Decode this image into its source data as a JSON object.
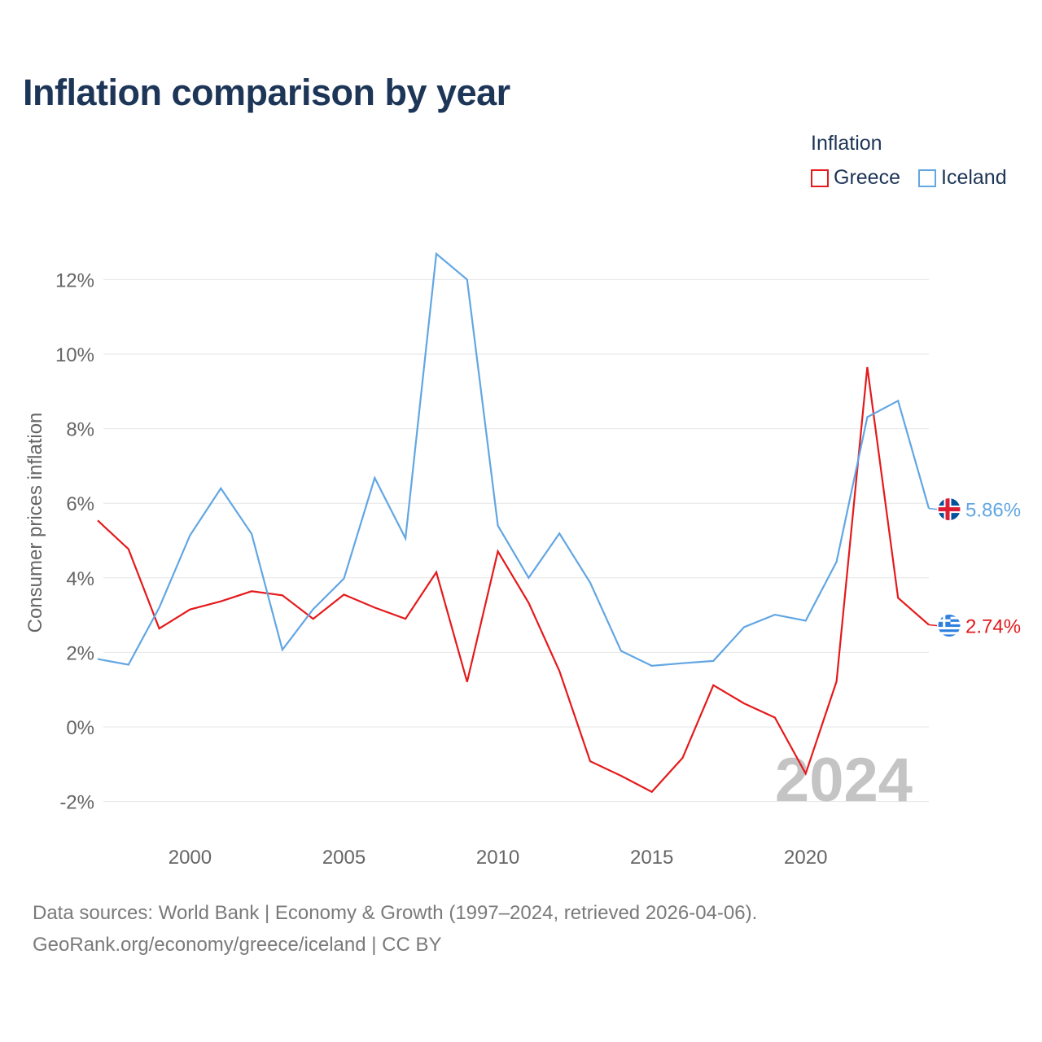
{
  "title": "Inflation comparison by year",
  "legend": {
    "title": "Inflation",
    "items": [
      {
        "label": "Greece",
        "color": "#e41a1c"
      },
      {
        "label": "Iceland",
        "color": "#62a6e3"
      }
    ]
  },
  "footer": {
    "line1": "Data sources: World Bank | Economy & Growth (1997–2024, retrieved 2026-04-06).",
    "line2": "GeoRank.org/economy/greece/iceland | CC BY"
  },
  "chart_data": {
    "type": "line",
    "title": "Inflation comparison by year",
    "xlabel": "",
    "ylabel": "Consumer prices inflation",
    "xlim": [
      1997,
      2024
    ],
    "ylim": [
      -3,
      13
    ],
    "yticks": [
      -2,
      0,
      2,
      4,
      6,
      8,
      10,
      12
    ],
    "ytick_labels": [
      "-2%",
      "0%",
      "2%",
      "4%",
      "6%",
      "8%",
      "10%",
      "12%"
    ],
    "xticks": [
      2000,
      2005,
      2010,
      2015,
      2020
    ],
    "xtick_labels": [
      "2000",
      "2005",
      "2010",
      "2015",
      "2020"
    ],
    "grid": true,
    "legend_position": "top-right",
    "watermark_year": "2024",
    "x": [
      1997,
      1998,
      1999,
      2000,
      2001,
      2002,
      2003,
      2004,
      2005,
      2006,
      2007,
      2008,
      2009,
      2010,
      2011,
      2012,
      2013,
      2014,
      2015,
      2016,
      2017,
      2018,
      2019,
      2020,
      2021,
      2022,
      2023,
      2024
    ],
    "series": [
      {
        "name": "Greece",
        "color": "#e41a1c",
        "values": [
          5.54,
          4.77,
          2.64,
          3.15,
          3.37,
          3.64,
          3.53,
          2.9,
          3.55,
          3.2,
          2.9,
          4.15,
          1.21,
          4.71,
          3.33,
          1.5,
          -0.92,
          -1.31,
          -1.74,
          -0.83,
          1.12,
          0.63,
          0.25,
          -1.25,
          1.22,
          9.65,
          3.46,
          2.74
        ],
        "end_label": "2.74%",
        "flag": "greece-flag"
      },
      {
        "name": "Iceland",
        "color": "#62a6e3",
        "values": [
          1.82,
          1.67,
          3.2,
          5.14,
          6.4,
          5.18,
          2.07,
          3.16,
          3.98,
          6.68,
          5.06,
          12.69,
          12.0,
          5.4,
          4.0,
          5.19,
          3.87,
          2.04,
          1.64,
          1.71,
          1.77,
          2.68,
          3.01,
          2.85,
          4.43,
          8.31,
          8.75,
          5.86
        ],
        "end_label": "5.86%",
        "flag": "iceland-flag"
      }
    ]
  }
}
